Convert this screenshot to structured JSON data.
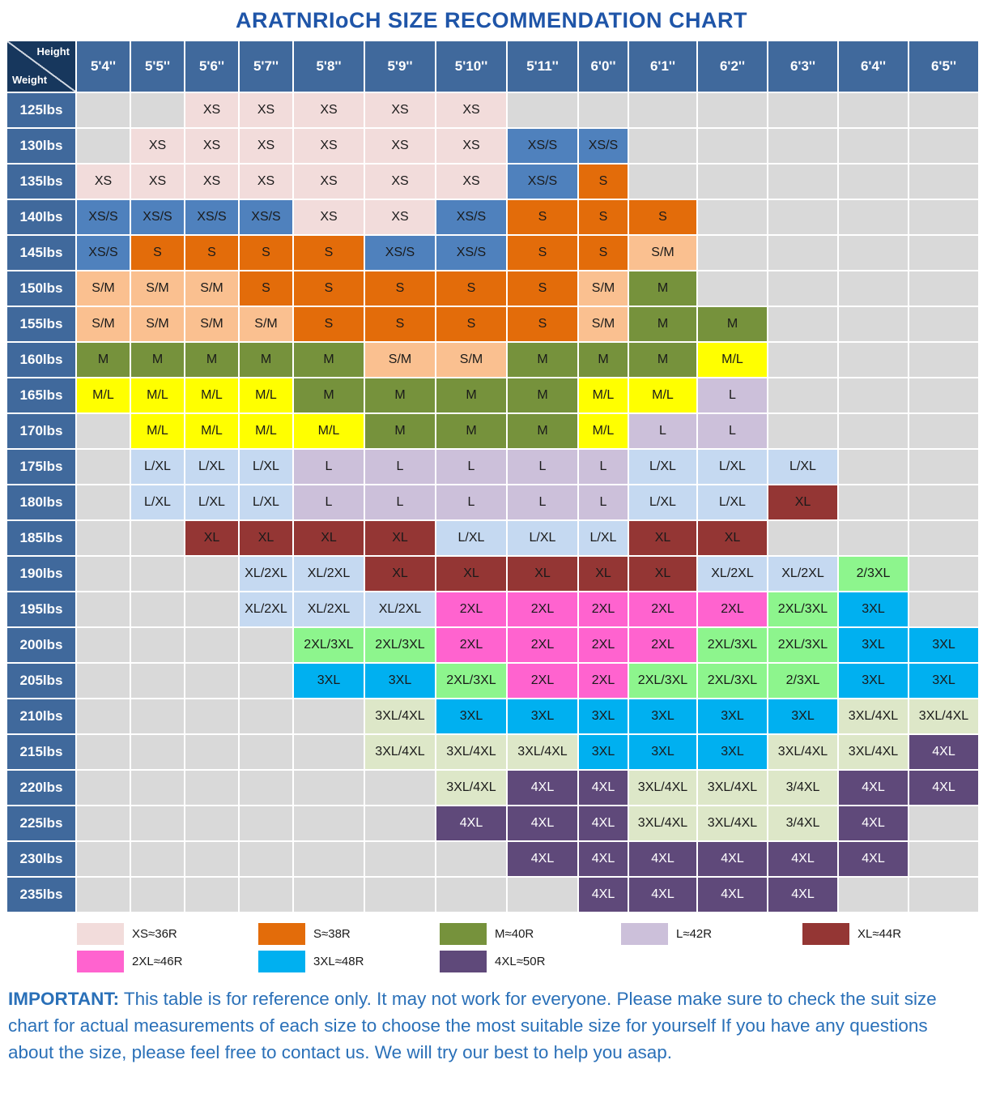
{
  "title": "ARATNRIoCH SIZE RECOMMENDATION CHART",
  "corner": {
    "top": "Height",
    "bottom": "Weight"
  },
  "chart_data": {
    "type": "table",
    "columns": [
      "5'4''",
      "5'5''",
      "5'6''",
      "5'7''",
      "5'8''",
      "5'9''",
      "5'10''",
      "5'11''",
      "6'0''",
      "6'1''",
      "6'2''",
      "6'3''",
      "6'4''",
      "6'5''"
    ],
    "rows": [
      "125lbs",
      "130lbs",
      "135lbs",
      "140lbs",
      "145lbs",
      "150lbs",
      "155lbs",
      "160lbs",
      "165lbs",
      "170lbs",
      "175lbs",
      "180lbs",
      "185lbs",
      "190lbs",
      "195lbs",
      "200lbs",
      "205lbs",
      "210lbs",
      "215lbs",
      "220lbs",
      "225lbs",
      "230lbs",
      "235lbs"
    ],
    "values": [
      [
        "",
        "",
        "XS",
        "XS",
        "XS",
        "XS",
        "XS",
        "",
        "",
        "",
        "",
        "",
        "",
        ""
      ],
      [
        "",
        "XS",
        "XS",
        "XS",
        "XS",
        "XS",
        "XS",
        "XS/S",
        "XS/S",
        "",
        "",
        "",
        "",
        ""
      ],
      [
        "XS",
        "XS",
        "XS",
        "XS",
        "XS",
        "XS",
        "XS",
        "XS/S",
        "S",
        "",
        "",
        "",
        "",
        ""
      ],
      [
        "XS/S",
        "XS/S",
        "XS/S",
        "XS/S",
        "XS",
        "XS",
        "XS/S",
        "S",
        "S",
        "S",
        "",
        "",
        "",
        ""
      ],
      [
        "XS/S",
        "S",
        "S",
        "S",
        "S",
        "XS/S",
        "XS/S",
        "S",
        "S",
        "S/M",
        "",
        "",
        "",
        ""
      ],
      [
        "S/M",
        "S/M",
        "S/M",
        "S",
        "S",
        "S",
        "S",
        "S",
        "S/M",
        "M",
        "",
        "",
        "",
        ""
      ],
      [
        "S/M",
        "S/M",
        "S/M",
        "S/M",
        "S",
        "S",
        "S",
        "S",
        "S/M",
        "M",
        "M",
        "",
        "",
        ""
      ],
      [
        "M",
        "M",
        "M",
        "M",
        "M",
        "S/M",
        "S/M",
        "M",
        "M",
        "M",
        "M/L",
        "",
        "",
        ""
      ],
      [
        "M/L",
        "M/L",
        "M/L",
        "M/L",
        "M",
        "M",
        "M",
        "M",
        "M/L",
        "M/L",
        "L",
        "",
        "",
        ""
      ],
      [
        "",
        "M/L",
        "M/L",
        "M/L",
        "M/L",
        "M",
        "M",
        "M",
        "M/L",
        "L",
        "L",
        "",
        "",
        ""
      ],
      [
        "",
        "L/XL",
        "L/XL",
        "L/XL",
        "L",
        "L",
        "L",
        "L",
        "L",
        "L/XL",
        "L/XL",
        "L/XL",
        "",
        ""
      ],
      [
        "",
        "L/XL",
        "L/XL",
        "L/XL",
        "L",
        "L",
        "L",
        "L",
        "L",
        "L/XL",
        "L/XL",
        "XL",
        "",
        ""
      ],
      [
        "",
        "",
        "XL",
        "XL",
        "XL",
        "XL",
        "L/XL",
        "L/XL",
        "L/XL",
        "XL",
        "XL",
        "",
        "",
        ""
      ],
      [
        "",
        "",
        "",
        "XL/2XL",
        "XL/2XL",
        "XL",
        "XL",
        "XL",
        "XL",
        "XL",
        "XL/2XL",
        "XL/2XL",
        "2/3XL",
        ""
      ],
      [
        "",
        "",
        "",
        "XL/2XL",
        "XL/2XL",
        "XL/2XL",
        "2XL",
        "2XL",
        "2XL",
        "2XL",
        "2XL",
        "2XL/3XL",
        "3XL",
        ""
      ],
      [
        "",
        "",
        "",
        "",
        "2XL/3XL",
        "2XL/3XL",
        "2XL",
        "2XL",
        "2XL",
        "2XL",
        "2XL/3XL",
        "2XL/3XL",
        "3XL",
        "3XL"
      ],
      [
        "",
        "",
        "",
        "",
        "3XL",
        "3XL",
        "2XL/3XL",
        "2XL",
        "2XL",
        "2XL/3XL",
        "2XL/3XL",
        "2/3XL",
        "3XL",
        "3XL"
      ],
      [
        "",
        "",
        "",
        "",
        "",
        "3XL/4XL",
        "3XL",
        "3XL",
        "3XL",
        "3XL",
        "3XL",
        "3XL",
        "3XL/4XL",
        "3XL/4XL"
      ],
      [
        "",
        "",
        "",
        "",
        "",
        "3XL/4XL",
        "3XL/4XL",
        "3XL/4XL",
        "3XL",
        "3XL",
        "3XL",
        "3XL/4XL",
        "3XL/4XL",
        "4XL"
      ],
      [
        "",
        "",
        "",
        "",
        "",
        "",
        "3XL/4XL",
        "4XL",
        "4XL",
        "3XL/4XL",
        "3XL/4XL",
        "3/4XL",
        "4XL",
        "4XL"
      ],
      [
        "",
        "",
        "",
        "",
        "",
        "",
        "4XL",
        "4XL",
        "4XL",
        "3XL/4XL",
        "3XL/4XL",
        "3/4XL",
        "4XL",
        ""
      ],
      [
        "",
        "",
        "",
        "",
        "",
        "",
        "",
        "4XL",
        "4XL",
        "4XL",
        "4XL",
        "4XL",
        "4XL",
        ""
      ],
      [
        "",
        "",
        "",
        "",
        "",
        "",
        "",
        "",
        "4XL",
        "4XL",
        "4XL",
        "4XL",
        "",
        ""
      ]
    ]
  },
  "style_map": {
    "XS": "xs",
    "XS/S": "xss",
    "S": "s",
    "S/M": "sm",
    "M": "m",
    "M/L": "ml",
    "L": "l",
    "L/XL": "lxl",
    "XL": "xl",
    "XL/2XL": "lxl",
    "2XL": "x2",
    "2XL/3XL": "g2",
    "2/3XL": "g2",
    "3XL": "x3",
    "3XL/4XL": "g3",
    "3/4XL": "g3",
    "4XL": "x4"
  },
  "palette": {
    "xs": "#f2dcdb",
    "xss": "#4f81bd",
    "s": "#e36c0a",
    "sm": "#fac090",
    "m": "#76923c",
    "ml": "#ffff00",
    "l": "#ccc0da",
    "lxl": "#c5d9f1",
    "xl": "#943634",
    "x2": "#ff63cf",
    "g2": "#8df58d",
    "x3": "#00b0f0",
    "g3": "#dde7c8",
    "x4": "#5f497a"
  },
  "palette_fg": {
    "x4": "#ffffff"
  },
  "legend": {
    "items": [
      {
        "label": "XS≈36R",
        "key": "xs"
      },
      {
        "label": "S≈38R",
        "key": "s"
      },
      {
        "label": "M≈40R",
        "key": "m"
      },
      {
        "label": "L≈42R",
        "key": "l"
      },
      {
        "label": "XL≈44R",
        "key": "xl"
      },
      {
        "label": "2XL≈46R",
        "key": "x2"
      },
      {
        "label": "3XL≈48R",
        "key": "x3"
      },
      {
        "label": "4XL≈50R",
        "key": "x4"
      }
    ]
  },
  "note": {
    "lead": "IMPORTANT:",
    "body": " This table is for reference only. It may not work for everyone. Please make sure to check the suit size chart for actual measurements of each size to choose the most suitable size for yourself If you have any questions about the size, please feel free to contact us. We will try our best to help you asap."
  }
}
